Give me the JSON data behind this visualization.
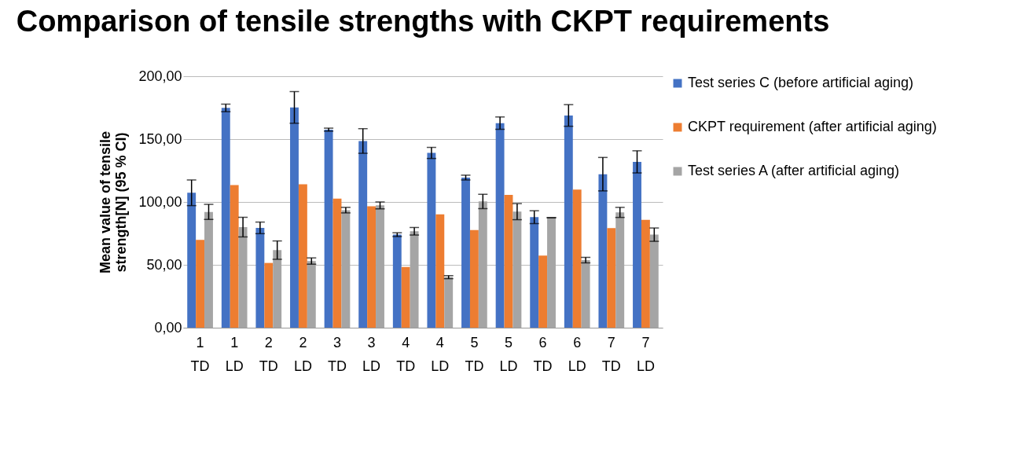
{
  "chart_data": {
    "type": "bar",
    "title": "Comparison of tensile strengths with CKPT requirements",
    "ylabel": "Mean value of tensile strength[N] (95 % CI)",
    "categories": [
      "1 TD",
      "1 LD",
      "2 TD",
      "2 LD",
      "3 TD",
      "3 LD",
      "4 TD",
      "4 LD",
      "5 TD",
      "5 LD",
      "6 TD",
      "6 LD",
      "7 TD",
      "7 LD"
    ],
    "series": [
      {
        "name": "Test series C (before artificial aging)",
        "color": "#4472c4",
        "values": [
          107.3,
          174.8,
          79.4,
          175.2,
          157.5,
          148.5,
          74,
          139,
          119.4,
          162.7,
          87.9,
          168.8,
          122.1,
          131.9
        ],
        "errors": [
          10.2,
          3,
          4.6,
          12.6,
          1.2,
          9.8,
          1.5,
          4.4,
          1.9,
          4.9,
          5.1,
          8.6,
          13.3,
          8.8
        ]
      },
      {
        "name": "CKPT requirement (after artificial aging)",
        "color": "#ed7d31",
        "values": [
          69.8,
          113.5,
          51.5,
          114,
          102.7,
          96.5,
          48.3,
          90.2,
          77.7,
          105.6,
          57.3,
          109.8,
          79.2,
          85.8
        ]
      },
      {
        "name": "Test series A (after artificial aging)",
        "color": "#a5a5a5",
        "values": [
          92.1,
          80,
          61.7,
          53,
          93.5,
          97.3,
          76.7,
          40.2,
          100.4,
          92.3,
          87.5,
          53.8,
          91.7,
          74
        ],
        "errors": [
          6,
          7.8,
          7.3,
          2.5,
          2.2,
          2.7,
          3,
          1.2,
          5.7,
          6.4,
          0,
          2.2,
          4,
          5.3
        ]
      }
    ],
    "ylim": [
      0,
      200
    ],
    "yticks": [
      {
        "value": 0,
        "label": "0,00"
      },
      {
        "value": 50,
        "label": "50,00"
      },
      {
        "value": 100,
        "label": "100,00"
      },
      {
        "value": 150,
        "label": "150,00"
      },
      {
        "value": 200,
        "label": "200,00"
      }
    ],
    "grid": "y",
    "legend": "right"
  }
}
